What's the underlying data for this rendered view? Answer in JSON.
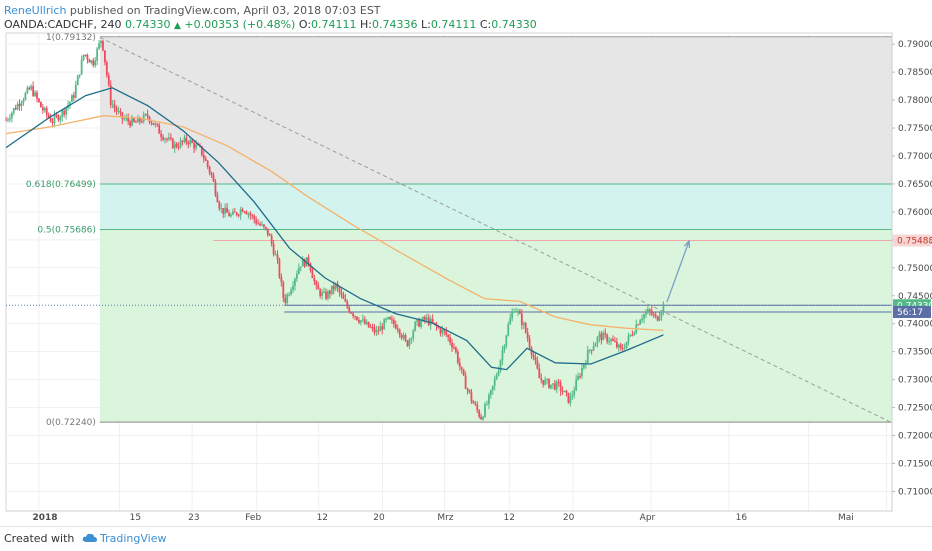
{
  "header": {
    "author": "ReneUllrich",
    "published_text": "published on TradingView.com, April 03, 2018 07:03 EST",
    "symbol": "OANDA:CADCHF, 240",
    "last": "0.74330",
    "arrow": "▲",
    "change": "+0.00353 (+0.48%)",
    "o_label": "O:",
    "o_value": "0.74111",
    "h_label": "H:",
    "h_value": "0.74336",
    "l_label": "L:",
    "l_value": "0.74111",
    "c_label": "C:",
    "c_value": "0.74330"
  },
  "footer": {
    "created_with": "Created with",
    "brand": "TradingView"
  },
  "colors": {
    "up": "#53b987",
    "down": "#eb4d5c",
    "ema_fast": "#1f6b8c",
    "ema_slow": "#f5b26b",
    "fib_upper": "#e6e6e6",
    "fib_mid": "#d2f3ee",
    "fib_lower": "#dbf5dc",
    "arrow": "#7a9ec7"
  },
  "chart_data": {
    "type": "candlestick",
    "symbol": "OANDA:CADCHF",
    "timeframe": "240",
    "ylim": [
      0.7065,
      0.792
    ],
    "y_ticks": [
      "0.79000",
      "0.78500",
      "0.78000",
      "0.77500",
      "0.77000",
      "0.76500",
      "0.76000",
      "0.75500",
      "0.75000",
      "0.74500",
      "0.74000",
      "0.73500",
      "0.73000",
      "0.72500",
      "0.72000",
      "0.71500",
      "0.71000"
    ],
    "x_ticks": [
      "2018",
      "15",
      "23",
      "Feb",
      "12",
      "20",
      "Mrz",
      "12",
      "20",
      "Apr",
      "16",
      "Mai"
    ],
    "price_markers": [
      {
        "label": "0.75488",
        "value": 0.75488,
        "style": "red"
      },
      {
        "label": "0.74330",
        "value": 0.7433,
        "style": "green"
      },
      {
        "label": "56:17",
        "value": 0.7421,
        "style": "grey"
      }
    ],
    "fib_levels": [
      {
        "label": "1(0.79132)",
        "value": 0.79132
      },
      {
        "label": "0.618(0.76499)",
        "value": 0.76499
      },
      {
        "label": "0.5(0.75686)",
        "value": 0.75686
      },
      {
        "label": "0(0.72240)",
        "value": 0.7224
      }
    ],
    "horizontal_levels": [
      0.75488,
      0.7433,
      0.7421
    ],
    "trendline": {
      "from": [
        0.106,
        0.7912
      ],
      "to": [
        0.997,
        0.7225
      ]
    },
    "projection_arrow": {
      "from": [
        0.746,
        0.7439
      ],
      "to": [
        0.771,
        0.7548
      ]
    },
    "ohlc_path": [
      [
        0.0,
        0.7765
      ],
      [
        0.016,
        0.7798
      ],
      [
        0.028,
        0.7822
      ],
      [
        0.04,
        0.7786
      ],
      [
        0.052,
        0.7762
      ],
      [
        0.064,
        0.7778
      ],
      [
        0.076,
        0.7806
      ],
      [
        0.088,
        0.7884
      ],
      [
        0.098,
        0.7866
      ],
      [
        0.108,
        0.7912
      ],
      [
        0.118,
        0.7798
      ],
      [
        0.13,
        0.7768
      ],
      [
        0.145,
        0.7758
      ],
      [
        0.16,
        0.7772
      ],
      [
        0.175,
        0.774
      ],
      [
        0.19,
        0.7718
      ],
      [
        0.205,
        0.7728
      ],
      [
        0.22,
        0.771
      ],
      [
        0.232,
        0.7665
      ],
      [
        0.242,
        0.7605
      ],
      [
        0.255,
        0.7592
      ],
      [
        0.268,
        0.7608
      ],
      [
        0.283,
        0.7582
      ],
      [
        0.296,
        0.7562
      ],
      [
        0.306,
        0.7512
      ],
      [
        0.314,
        0.7438
      ],
      [
        0.322,
        0.7468
      ],
      [
        0.332,
        0.7508
      ],
      [
        0.342,
        0.7512
      ],
      [
        0.35,
        0.7462
      ],
      [
        0.36,
        0.7448
      ],
      [
        0.372,
        0.7468
      ],
      [
        0.384,
        0.7432
      ],
      [
        0.396,
        0.7412
      ],
      [
        0.406,
        0.7398
      ],
      [
        0.418,
        0.7384
      ],
      [
        0.43,
        0.7406
      ],
      [
        0.442,
        0.7396
      ],
      [
        0.452,
        0.7362
      ],
      [
        0.462,
        0.7398
      ],
      [
        0.474,
        0.7408
      ],
      [
        0.484,
        0.7396
      ],
      [
        0.496,
        0.7382
      ],
      [
        0.506,
        0.7358
      ],
      [
        0.516,
        0.7302
      ],
      [
        0.526,
        0.7262
      ],
      [
        0.536,
        0.7232
      ],
      [
        0.546,
        0.7268
      ],
      [
        0.556,
        0.7322
      ],
      [
        0.566,
        0.7392
      ],
      [
        0.574,
        0.7432
      ],
      [
        0.584,
        0.7398
      ],
      [
        0.594,
        0.7348
      ],
      [
        0.602,
        0.7302
      ],
      [
        0.612,
        0.7292
      ],
      [
        0.624,
        0.7288
      ],
      [
        0.636,
        0.7262
      ],
      [
        0.648,
        0.7312
      ],
      [
        0.658,
        0.7352
      ],
      [
        0.67,
        0.7378
      ],
      [
        0.682,
        0.7372
      ],
      [
        0.694,
        0.7352
      ],
      [
        0.706,
        0.7382
      ],
      [
        0.716,
        0.7412
      ],
      [
        0.726,
        0.7422
      ],
      [
        0.734,
        0.7408
      ],
      [
        0.742,
        0.7433
      ]
    ],
    "ema_fast_path": [
      [
        0.0,
        0.7715
      ],
      [
        0.05,
        0.777
      ],
      [
        0.09,
        0.7808
      ],
      [
        0.12,
        0.7822
      ],
      [
        0.16,
        0.779
      ],
      [
        0.2,
        0.7745
      ],
      [
        0.24,
        0.7688
      ],
      [
        0.28,
        0.7618
      ],
      [
        0.32,
        0.7535
      ],
      [
        0.36,
        0.7482
      ],
      [
        0.4,
        0.7445
      ],
      [
        0.44,
        0.7418
      ],
      [
        0.48,
        0.7402
      ],
      [
        0.52,
        0.737
      ],
      [
        0.548,
        0.7322
      ],
      [
        0.565,
        0.7318
      ],
      [
        0.588,
        0.7356
      ],
      [
        0.62,
        0.733
      ],
      [
        0.66,
        0.7328
      ],
      [
        0.7,
        0.7352
      ],
      [
        0.742,
        0.738
      ]
    ],
    "ema_slow_path": [
      [
        0.0,
        0.774
      ],
      [
        0.05,
        0.7752
      ],
      [
        0.11,
        0.7772
      ],
      [
        0.15,
        0.7768
      ],
      [
        0.2,
        0.7752
      ],
      [
        0.25,
        0.7718
      ],
      [
        0.3,
        0.7672
      ],
      [
        0.34,
        0.7628
      ],
      [
        0.39,
        0.7578
      ],
      [
        0.44,
        0.7532
      ],
      [
        0.5,
        0.7478
      ],
      [
        0.54,
        0.7445
      ],
      [
        0.58,
        0.744
      ],
      [
        0.62,
        0.7412
      ],
      [
        0.66,
        0.7398
      ],
      [
        0.7,
        0.7392
      ],
      [
        0.742,
        0.7388
      ]
    ]
  }
}
